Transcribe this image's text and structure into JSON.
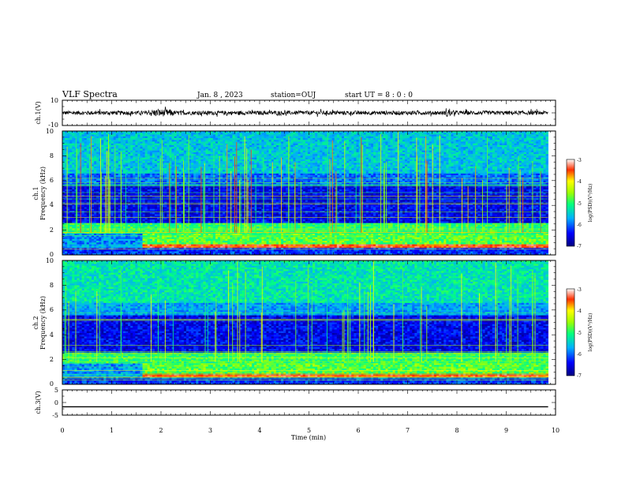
{
  "header": {
    "title": "VLF Spectra",
    "date": "Jan. 8 , 2023",
    "station": "station=OUJ",
    "start": "start UT = 8 : 0 : 0"
  },
  "chart_data": [
    {
      "type": "line",
      "panel": "ch1-waveform",
      "ylabel": "ch.1(V)",
      "ylim": [
        -10,
        10
      ],
      "yticks": [
        "10",
        "-10"
      ],
      "xlim": [
        0,
        10
      ],
      "data_end_min": 9.85,
      "description_level": 0
    },
    {
      "type": "heatmap",
      "panel": "ch1-spectrogram",
      "ylabel_top": "ch.1",
      "ylabel": "Frequency (kHz)",
      "ylim": [
        0,
        10
      ],
      "yticks": [
        "0",
        "2",
        "4",
        "6",
        "8",
        "10"
      ],
      "xlim": [
        0,
        10
      ],
      "data_end_min": 9.85,
      "colorbar": {
        "label": "log(PSD)(V²/Hz)",
        "range": [
          -7,
          -3
        ],
        "ticks": [
          "-3",
          "-4",
          "-5",
          "-6",
          "-7"
        ]
      }
    },
    {
      "type": "heatmap",
      "panel": "ch2-spectrogram",
      "ylabel_top": "ch.2",
      "ylabel": "Frequency (kHz)",
      "ylim": [
        0,
        10
      ],
      "yticks": [
        "0",
        "2",
        "4",
        "6",
        "8",
        "10"
      ],
      "xlim": [
        0,
        10
      ],
      "data_end_min": 9.85,
      "colorbar": {
        "label": "log(PSD)(V²/Hz)",
        "range": [
          -7,
          -3
        ],
        "ticks": [
          "-3",
          "-4",
          "-5",
          "-6",
          "-7"
        ]
      }
    },
    {
      "type": "line",
      "panel": "ch3-waveform",
      "ylabel": "ch.3(V)",
      "ylim": [
        -5,
        5
      ],
      "yticks": [
        "5",
        "0",
        "-5"
      ],
      "xlim": [
        0,
        10
      ],
      "data_end_min": 9.85,
      "level": -1.7
    }
  ],
  "xaxis": {
    "label": "Time (min)",
    "ticks": [
      "0",
      "1",
      "2",
      "3",
      "4",
      "5",
      "6",
      "7",
      "8",
      "9",
      "10"
    ]
  }
}
